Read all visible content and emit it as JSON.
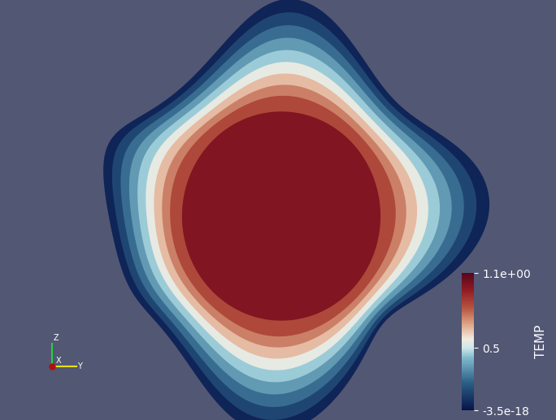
{
  "chart_data": {
    "type": "contour",
    "levels": [
      0.05,
      0.15,
      0.25,
      0.35,
      0.45,
      0.55,
      0.65,
      0.75,
      0.85,
      1.0
    ],
    "colorbar": {
      "label": "TEMP",
      "range": [
        -3.5e-18,
        1.1
      ],
      "ticks": [
        {
          "value": -3.5e-18,
          "label": "-3.5e-18"
        },
        0.5,
        {
          "value": 1.1,
          "label": "1.1e+00"
        }
      ]
    },
    "triad_labels": [
      "Z",
      "X",
      "Y"
    ]
  }
}
